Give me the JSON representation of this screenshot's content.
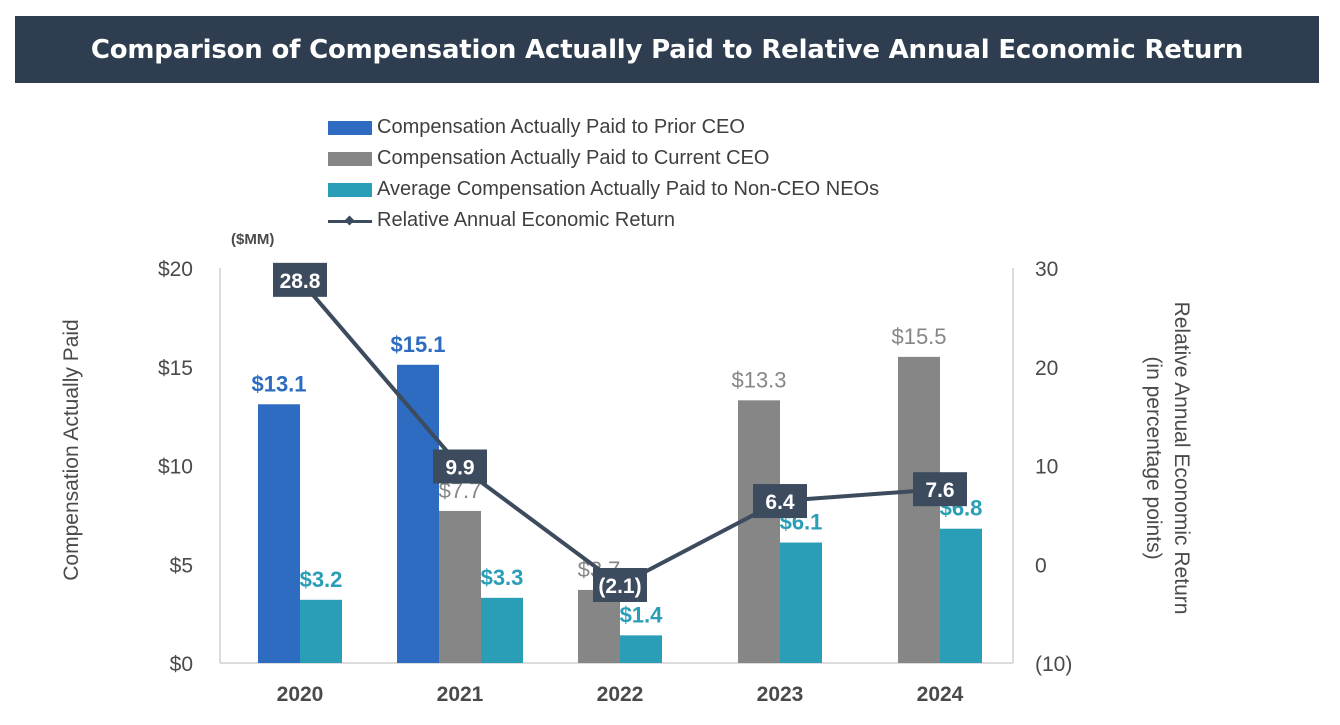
{
  "title": "Comparison of Compensation Actually Paid to Relative Annual Economic Return",
  "chart_data": {
    "type": "bar",
    "title": "Comparison of Compensation Actually Paid to Relative Annual Economic Return",
    "unit_note": "($MM)",
    "ylabel": "Compensation Actually Paid",
    "y2label_line1": "Relative Annual Economic Return",
    "y2label_line2": "(in percentage points)",
    "categories": [
      "2020",
      "2021",
      "2022",
      "2023",
      "2024"
    ],
    "ylim": [
      0,
      20
    ],
    "yticks": [
      0,
      5,
      10,
      15,
      20
    ],
    "ytick_labels": [
      "$0",
      "$5",
      "$10",
      "$15",
      "$20"
    ],
    "y2lim": [
      -10,
      30
    ],
    "y2ticks": [
      -10,
      0,
      10,
      20,
      30
    ],
    "y2tick_labels": [
      "(10)",
      "0",
      "10",
      "20",
      "30"
    ],
    "legend_position": "top",
    "grid": false,
    "series": [
      {
        "name": "Compensation Actually Paid to Prior CEO",
        "kind": "bar",
        "color": "#2d6cc0",
        "label_color": "#2d6cc0",
        "values": [
          13.1,
          15.1,
          null,
          null,
          null
        ],
        "labels": [
          "$13.1",
          "$15.1",
          "",
          "",
          ""
        ]
      },
      {
        "name": "Compensation Actually Paid to Current CEO",
        "kind": "bar",
        "color": "#868686",
        "label_color": "#868686",
        "values": [
          null,
          7.7,
          3.7,
          13.3,
          15.5
        ],
        "labels": [
          "",
          "$7.7",
          "$3.7",
          "$13.3",
          "$15.5"
        ]
      },
      {
        "name": "Average Compensation Actually Paid to Non-CEO NEOs",
        "kind": "bar",
        "color": "#2a9eb7",
        "label_color": "#2a9eb7",
        "values": [
          3.2,
          3.3,
          1.4,
          6.1,
          6.8
        ],
        "labels": [
          "$3.2",
          "$3.3",
          "$1.4",
          "$6.1",
          "$6.8"
        ]
      },
      {
        "name": "Relative Annual Economic Return",
        "kind": "line",
        "axis": "right",
        "color": "#3c4b5e",
        "values": [
          28.8,
          9.9,
          -2.1,
          6.4,
          7.6
        ],
        "labels": [
          "28.8",
          "9.9",
          "(2.1)",
          "6.4",
          "7.6"
        ]
      }
    ]
  }
}
